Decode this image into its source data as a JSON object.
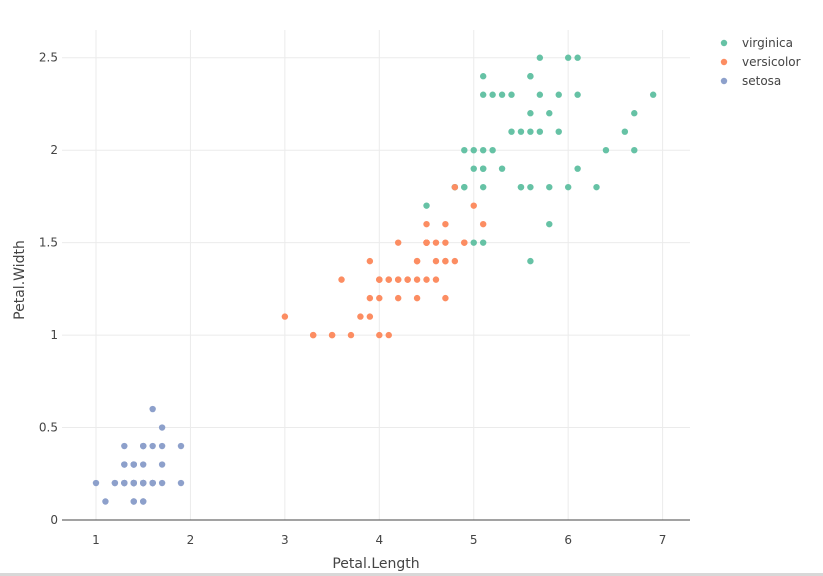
{
  "chart_data": {
    "type": "scatter",
    "xlabel": "Petal.Length",
    "ylabel": "Petal.Width",
    "xlim": [
      0.64,
      7.29
    ],
    "ylim": [
      0,
      2.65
    ],
    "xticks": [
      1,
      2,
      3,
      4,
      5,
      6,
      7
    ],
    "yticks": [
      0,
      0.5,
      1,
      1.5,
      2,
      2.5
    ],
    "ytick_labels": [
      "0",
      "0.5",
      "1",
      "1.5",
      "2",
      "2.5"
    ],
    "grid": true,
    "legend_placement": "top-right",
    "series": [
      {
        "name": "virginica",
        "color": "#66c2a5",
        "x": [
          6.0,
          5.1,
          5.9,
          5.6,
          5.8,
          6.6,
          4.5,
          6.3,
          5.8,
          6.1,
          5.1,
          5.3,
          5.5,
          5.0,
          5.1,
          5.3,
          5.5,
          6.7,
          6.9,
          5.0,
          5.7,
          4.9,
          6.7,
          4.9,
          5.7,
          6.0,
          4.8,
          4.9,
          5.6,
          5.8,
          6.1,
          6.4,
          5.6,
          5.1,
          5.6,
          6.1,
          5.6,
          5.5,
          4.8,
          5.4,
          5.6,
          5.1,
          5.1,
          5.9,
          5.7,
          5.2,
          5.0,
          5.2,
          5.4,
          5.1
        ],
        "y": [
          2.5,
          1.9,
          2.1,
          1.8,
          2.2,
          2.1,
          1.7,
          1.8,
          1.8,
          2.5,
          2.0,
          1.9,
          2.1,
          2.0,
          2.4,
          2.3,
          1.8,
          2.2,
          2.3,
          1.5,
          2.3,
          2.0,
          2.0,
          1.8,
          2.1,
          1.8,
          1.8,
          1.8,
          2.1,
          1.6,
          1.9,
          2.0,
          2.2,
          1.5,
          1.4,
          2.3,
          2.4,
          1.8,
          1.8,
          2.1,
          2.4,
          2.3,
          1.9,
          2.3,
          2.5,
          2.3,
          1.9,
          2.0,
          2.3,
          1.8
        ]
      },
      {
        "name": "versicolor",
        "color": "#fc8d62",
        "x": [
          4.7,
          4.5,
          4.9,
          4.0,
          4.6,
          4.5,
          4.7,
          3.3,
          4.6,
          3.9,
          3.5,
          4.2,
          4.0,
          4.7,
          3.6,
          4.4,
          4.5,
          4.1,
          4.5,
          3.9,
          4.8,
          4.0,
          4.9,
          4.7,
          4.3,
          4.4,
          4.8,
          5.0,
          4.5,
          3.5,
          3.8,
          3.7,
          3.9,
          5.1,
          4.5,
          4.5,
          4.7,
          4.4,
          4.1,
          4.0,
          4.4,
          4.6,
          4.0,
          3.3,
          4.2,
          4.2,
          4.2,
          4.3,
          3.0,
          4.1
        ],
        "y": [
          1.4,
          1.5,
          1.5,
          1.3,
          1.5,
          1.3,
          1.6,
          1.0,
          1.3,
          1.4,
          1.0,
          1.5,
          1.0,
          1.4,
          1.3,
          1.4,
          1.5,
          1.0,
          1.5,
          1.1,
          1.8,
          1.3,
          1.5,
          1.2,
          1.3,
          1.4,
          1.4,
          1.7,
          1.5,
          1.0,
          1.1,
          1.0,
          1.2,
          1.6,
          1.5,
          1.6,
          1.5,
          1.3,
          1.3,
          1.3,
          1.2,
          1.4,
          1.2,
          1.0,
          1.3,
          1.2,
          1.3,
          1.3,
          1.1,
          1.3
        ]
      },
      {
        "name": "setosa",
        "color": "#8da0cb",
        "x": [
          1.4,
          1.4,
          1.3,
          1.5,
          1.4,
          1.7,
          1.4,
          1.5,
          1.4,
          1.5,
          1.5,
          1.6,
          1.4,
          1.1,
          1.2,
          1.5,
          1.3,
          1.4,
          1.7,
          1.5,
          1.7,
          1.5,
          1.0,
          1.7,
          1.9,
          1.6,
          1.6,
          1.5,
          1.4,
          1.6,
          1.6,
          1.5,
          1.5,
          1.4,
          1.5,
          1.2,
          1.3,
          1.4,
          1.3,
          1.5,
          1.3,
          1.3,
          1.3,
          1.6,
          1.9,
          1.4,
          1.6,
          1.4,
          1.5,
          1.4
        ],
        "y": [
          0.2,
          0.2,
          0.2,
          0.2,
          0.2,
          0.4,
          0.3,
          0.2,
          0.2,
          0.1,
          0.2,
          0.2,
          0.1,
          0.1,
          0.2,
          0.4,
          0.4,
          0.3,
          0.3,
          0.3,
          0.2,
          0.4,
          0.2,
          0.5,
          0.2,
          0.2,
          0.4,
          0.2,
          0.2,
          0.2,
          0.2,
          0.4,
          0.1,
          0.2,
          0.2,
          0.2,
          0.2,
          0.1,
          0.2,
          0.2,
          0.3,
          0.3,
          0.2,
          0.6,
          0.4,
          0.3,
          0.2,
          0.2,
          0.2,
          0.2
        ]
      }
    ]
  }
}
